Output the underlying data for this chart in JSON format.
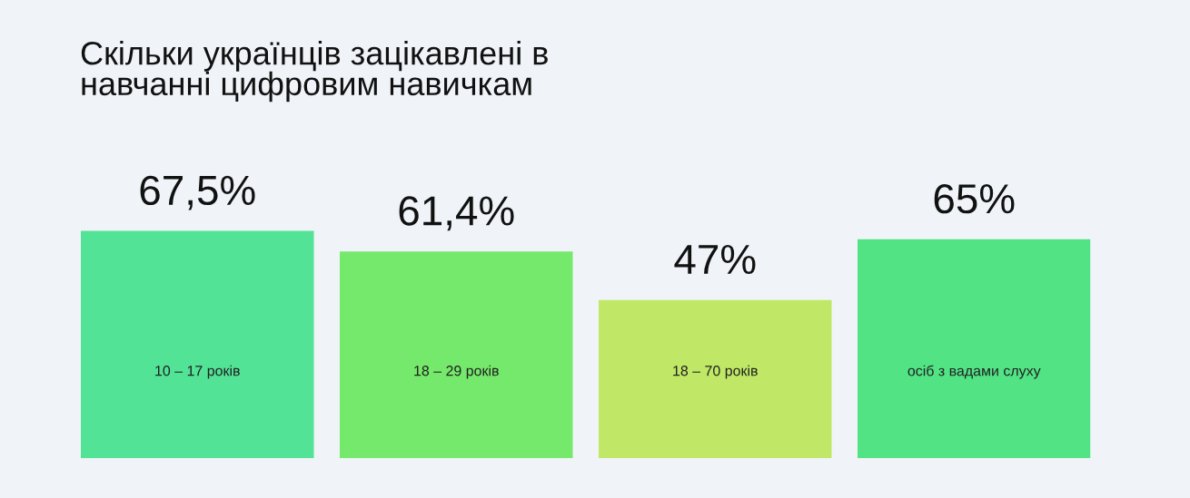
{
  "chart_data": {
    "type": "bar",
    "title": "Скільки українців зацікавлені в\nнавчанні цифровим навичкам",
    "categories": [
      "10 – 17 років",
      "18 – 29 років",
      "18 – 70 років",
      "осіб з вадами слуху"
    ],
    "values": [
      67.5,
      61.4,
      47,
      65
    ],
    "colors": [
      "#52e397",
      "#75e96b",
      "#c0e866",
      "#52e385"
    ],
    "value_labels": [
      "67,5%",
      "61,4%",
      "47%",
      "65%"
    ]
  }
}
